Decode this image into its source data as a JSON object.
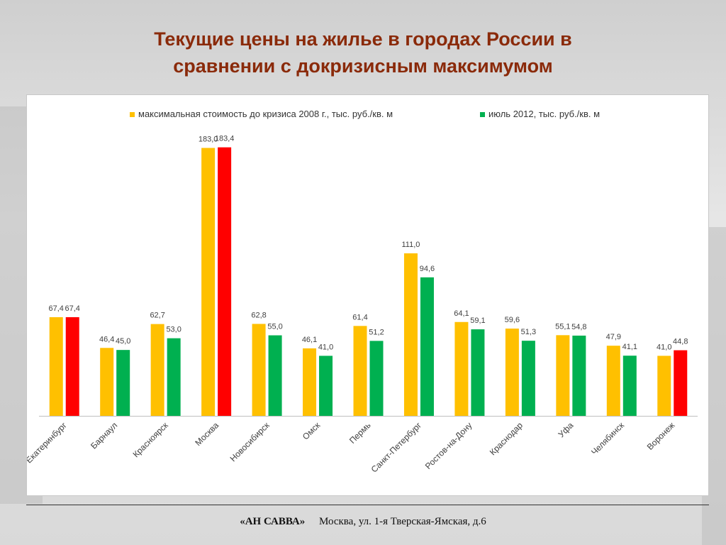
{
  "slide": {
    "title_line1": "Текущие цены на жилье в городах России в",
    "title_line2": "сравнении с докризисным максимумом"
  },
  "footer": {
    "brand": "«АН САВВА»",
    "address": "Москва, ул. 1-я Тверская-Ямская, д.6"
  },
  "colors": {
    "title": "#8a2a0a",
    "pre_crisis": "#ffc000",
    "current": "#00b050",
    "current_highlight": "#ff0000"
  },
  "chart_data": {
    "type": "bar",
    "title": "",
    "xlabel": "",
    "ylabel": "",
    "ylim": [
      0,
      190
    ],
    "grid": false,
    "legend_position": "top",
    "categories": [
      "Екатеринбург",
      "Барнаул",
      "Красноярск",
      "Москва",
      "Новосибирск",
      "Омск",
      "Пермь",
      "Санкт-Петербург",
      "Ростов-на-Дону",
      "Краснодар",
      "Уфа",
      "Челябинск",
      "Воронеж"
    ],
    "series": [
      {
        "name": "максимальная стоимость до кризиса 2008 г., тыс. руб./кв. м",
        "color": "#ffc000",
        "values": [
          67.4,
          46.4,
          62.7,
          183.0,
          62.8,
          46.1,
          61.4,
          111.0,
          64.1,
          59.6,
          55.1,
          47.9,
          41.0
        ],
        "labels": [
          "67,4",
          "46,4",
          "62,7",
          "183,0",
          "62,8",
          "46,1",
          "61,4",
          "111,0",
          "64,1",
          "59,6",
          "55,1",
          "47,9",
          "41,0"
        ]
      },
      {
        "name": "июль 2012, тыс. руб./кв. м",
        "color": "#00b050",
        "highlight_color": "#ff0000",
        "highlighted_categories": [
          "Екатеринбург",
          "Москва",
          "Воронеж"
        ],
        "values": [
          67.4,
          45.0,
          53.0,
          183.4,
          55.0,
          41.0,
          51.2,
          94.6,
          59.1,
          51.3,
          54.8,
          41.1,
          44.8
        ],
        "labels": [
          "67,4",
          "45,0",
          "53,0",
          "183,4",
          "55,0",
          "41,0",
          "51,2",
          "94,6",
          "59,1",
          "51,3",
          "54,8",
          "41,1",
          "44,8"
        ]
      }
    ]
  }
}
